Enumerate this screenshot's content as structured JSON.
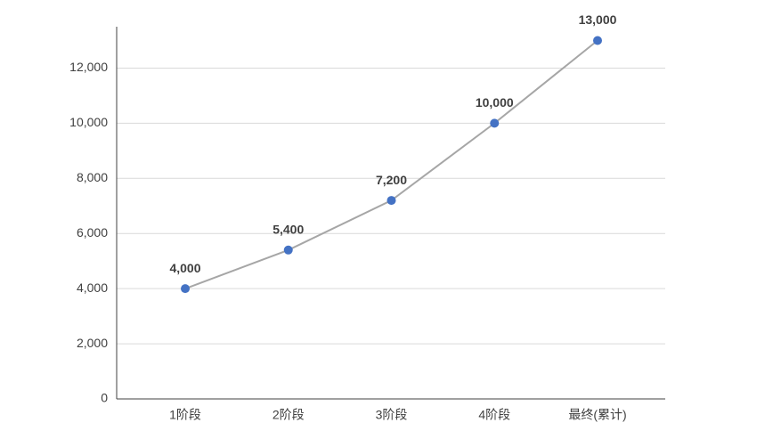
{
  "chart_data": {
    "type": "line",
    "categories": [
      "1阶段",
      "2阶段",
      "3阶段",
      "4阶段",
      "最终(累计)"
    ],
    "series": [
      {
        "values": [
          4000,
          5400,
          7200,
          10000,
          13000
        ],
        "value_labels": [
          "4,000",
          "5,400",
          "7,200",
          "10,000",
          "13,000"
        ],
        "color": "#4472c4",
        "line_color": "#a6a6a6"
      }
    ],
    "ylim": [
      0,
      13500
    ],
    "yticks": [
      0,
      {
        "value": 2000,
        "label": "2,000"
      },
      {
        "value": 4000,
        "label": "4,000"
      },
      {
        "value": 6000,
        "label": "6,000"
      },
      {
        "value": 8000,
        "label": "8,000"
      },
      {
        "value": 10000,
        "label": "10,000"
      },
      {
        "value": 12000,
        "label": "12,000"
      }
    ],
    "grid": true
  }
}
